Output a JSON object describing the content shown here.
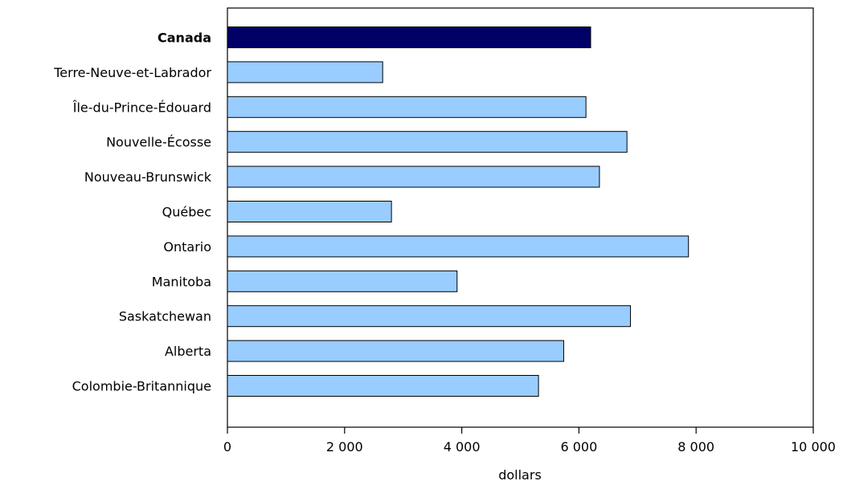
{
  "chart_data": {
    "type": "bar",
    "orientation": "horizontal",
    "categories": [
      "Canada",
      "Terre-Neuve-et-Labrador",
      "Île-du-Prince-Édouard",
      "Nouvelle-Écosse",
      "Nouveau-Brunswick",
      "Québec",
      "Ontario",
      "Manitoba",
      "Saskatchewan",
      "Alberta",
      "Colombie-Britannique"
    ],
    "values": [
      6200,
      2650,
      6120,
      6820,
      6350,
      2800,
      7870,
      3920,
      6880,
      5740,
      5310
    ],
    "highlight_category": "Canada",
    "colors": {
      "highlight": "#000066",
      "default": "#99ccff",
      "stroke": "#000000"
    },
    "xlabel": "dollars",
    "xlim": [
      0,
      10000
    ],
    "xticks": [
      0,
      2000,
      4000,
      6000,
      8000,
      10000
    ],
    "xtick_labels": [
      "0",
      "2 000",
      "4 000",
      "6 000",
      "8 000",
      "10 000"
    ],
    "grid": false
  }
}
